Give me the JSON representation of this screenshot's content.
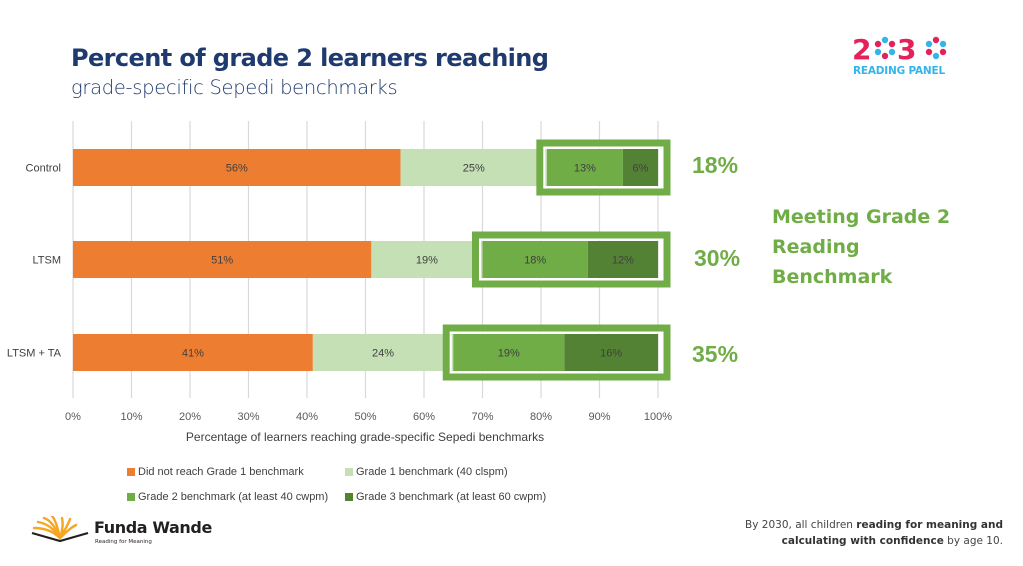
{
  "header": {
    "title": "Percent of grade 2 learners reaching",
    "subtitle": "grade-specific Sepedi benchmarks"
  },
  "logo_2030": {
    "digits": "2030",
    "panel": "READING PANEL"
  },
  "chart_data": {
    "type": "bar",
    "orientation": "horizontal",
    "stacked": true,
    "categories": [
      "Control",
      "LTSM",
      "LTSM + TA"
    ],
    "series": [
      {
        "name": "Did not reach Grade 1 benchmark",
        "color": "#ed7d31",
        "values": [
          56,
          51,
          41
        ],
        "labels": [
          "56%",
          "51%",
          "41%"
        ]
      },
      {
        "name": "Grade 1 benchmark (40 clspm)",
        "color": "#c5e0b4",
        "values": [
          25,
          19,
          24
        ],
        "labels": [
          "25%",
          "19%",
          "24%"
        ]
      },
      {
        "name": "Grade 2 benchmark (at least 40 cwpm)",
        "color": "#70ad47",
        "values": [
          13,
          18,
          19
        ],
        "labels": [
          "13%",
          "18%",
          "19%"
        ]
      },
      {
        "name": "Grade 3 benchmark (at least 60 cwpm)",
        "color": "#548235",
        "values": [
          6,
          12,
          16
        ],
        "labels": [
          "6%",
          "12%",
          "16%"
        ]
      }
    ],
    "xlim": [
      0,
      100
    ],
    "xticks": [
      "0%",
      "10%",
      "20%",
      "30%",
      "40%",
      "50%",
      "60%",
      "70%",
      "80%",
      "90%",
      "100%"
    ],
    "xlabel": "Percentage of learners reaching grade-specific Sepedi benchmarks",
    "ylabel": "",
    "grid": true,
    "legend_position": "bottom",
    "highlight_totals": [
      "18%",
      "30%",
      "35%"
    ],
    "annotation": "Meeting Grade 2 Reading Benchmark"
  },
  "annotation_lines": [
    "Meeting Grade 2",
    "Reading",
    "Benchmark"
  ],
  "brand": {
    "name": "Funda Wande",
    "tagline": "Reading for Meaning"
  },
  "footer": {
    "part1": "By 2030, all children ",
    "bold1": "reading for meaning and",
    "bold2": "calculating with confidence",
    "part2": " by age 10."
  }
}
